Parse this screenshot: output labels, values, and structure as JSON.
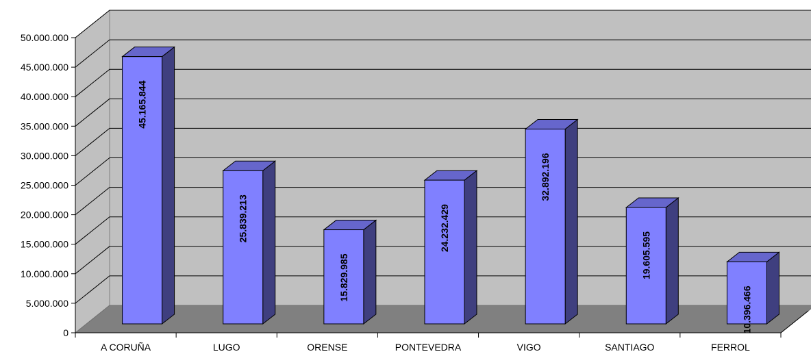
{
  "chart_data": {
    "type": "bar",
    "style": "3d-column",
    "categories": [
      "A CORUÑA",
      "LUGO",
      "ORENSE",
      "PONTEVEDRA",
      "VIGO",
      "SANTIAGO",
      "FERROL"
    ],
    "values": [
      45165844,
      25839213,
      15829985,
      24232429,
      32892196,
      19605595,
      10396466
    ],
    "value_labels": [
      "45.165.844",
      "25.839.213",
      "15.829.985",
      "24.232.429",
      "32.892.196",
      "19.605.595",
      "10.396.466"
    ],
    "y_ticks": [
      0,
      5000000,
      10000000,
      15000000,
      20000000,
      25000000,
      30000000,
      35000000,
      40000000,
      45000000,
      50000000
    ],
    "y_tick_labels": [
      "0",
      "5.000.000",
      "10.000.000",
      "15.000.000",
      "20.000.000",
      "25.000.000",
      "30.000.000",
      "35.000.000",
      "40.000.000",
      "45.000.000",
      "50.000.000"
    ],
    "ylim": [
      0,
      50000000
    ],
    "title": "",
    "xlabel": "",
    "ylabel": "",
    "grid": true,
    "legend": "none",
    "colors": {
      "bar_front": "#8080ff",
      "bar_top": "#6666cc",
      "bar_side": "#3f3f7f",
      "wall": "#c0c0c0",
      "floor": "#808080"
    }
  }
}
